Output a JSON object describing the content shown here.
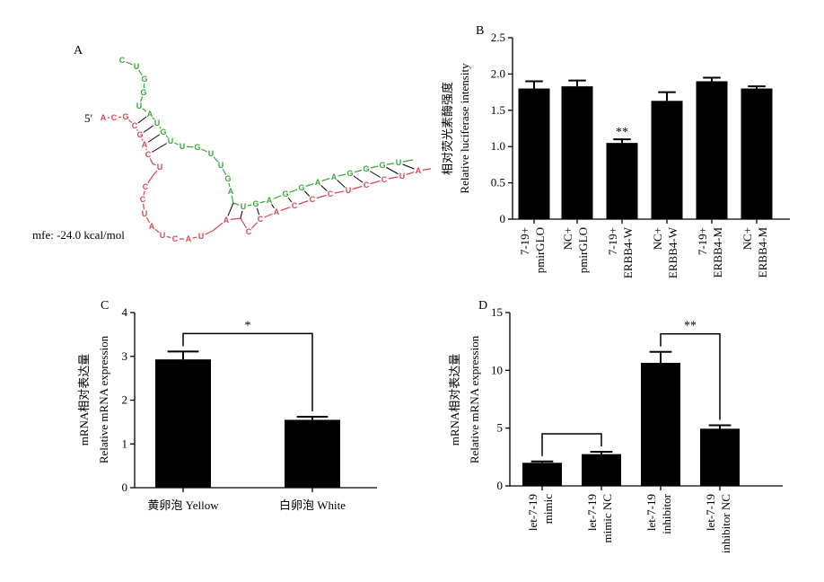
{
  "panels": {
    "A": {
      "label": "A",
      "five_prime": "5′",
      "mfe": "mfe: -24.0 kcal/mol",
      "colors": {
        "target": "#d64550",
        "mirna": "#3aa53a",
        "pair": "#000000"
      },
      "target_letters": [
        "A",
        "C",
        "G",
        "C",
        "G",
        "A",
        "C",
        "U",
        "C",
        "C",
        "U",
        "A",
        "U",
        "C",
        "A",
        "U",
        "A",
        "C",
        "C",
        "A",
        "C",
        "C",
        "C",
        "U",
        "C",
        "C",
        "U",
        "A"
      ],
      "mirna_letters": [
        "C",
        "U",
        "G",
        "G",
        "U",
        "A",
        "U",
        "G",
        "U",
        "U",
        "G",
        "U",
        "U",
        "G",
        "A",
        "U",
        "G",
        "A",
        "G",
        "G",
        "A",
        "A",
        "G",
        "G",
        "G",
        "U"
      ]
    },
    "B": {
      "label": "B"
    },
    "C": {
      "label": "C"
    },
    "D": {
      "label": "D"
    }
  },
  "chart_data": [
    {
      "panel": "B",
      "type": "bar",
      "categories": [
        [
          "7-19+",
          "pmirGLO"
        ],
        [
          "NC+",
          "pmirGLO"
        ],
        [
          "7-19+",
          "ERBB4-W"
        ],
        [
          "NC+",
          "ERBB4-W"
        ],
        [
          "7-19+",
          "ERBB4-M"
        ],
        [
          "NC+",
          "ERBB4-M"
        ]
      ],
      "values": [
        1.8,
        1.83,
        1.05,
        1.63,
        1.9,
        1.8
      ],
      "errors": [
        0.1,
        0.08,
        0.05,
        0.12,
        0.05,
        0.03
      ],
      "ylabel_cn": "相对荧光素酶强度",
      "ylabel_en": "Relative luciferase intensity",
      "ylim": [
        0,
        2.5
      ],
      "yticks": [
        "0",
        "0.5",
        "1.0",
        "1.5",
        "2.0",
        "2.5"
      ],
      "annotations": [
        {
          "category_index": 2,
          "text": "**"
        }
      ],
      "bar_color": "#000000"
    },
    {
      "panel": "C",
      "type": "bar",
      "categories": [
        [
          "黄卵泡 Yellow"
        ],
        [
          "白卵泡 White"
        ]
      ],
      "values": [
        2.93,
        1.55
      ],
      "errors": [
        0.18,
        0.07
      ],
      "ylabel_cn": "mRNA相对表达量",
      "ylabel_en": "Relative mRNA expression",
      "ylim": [
        0,
        4
      ],
      "yticks": [
        "0",
        "1",
        "2",
        "3",
        "4"
      ],
      "brackets": [
        {
          "from": 0,
          "to": 1,
          "text": "*"
        }
      ],
      "bar_color": "#000000"
    },
    {
      "panel": "D",
      "type": "bar",
      "categories": [
        [
          "let-7-19",
          "mimic"
        ],
        [
          "let-7-19",
          "mimic NC"
        ],
        [
          "let-7-19",
          "inhibitor"
        ],
        [
          "let-7-19",
          "inhibitor NC"
        ]
      ],
      "values": [
        2.0,
        2.75,
        10.65,
        4.95
      ],
      "errors": [
        0.12,
        0.2,
        0.95,
        0.3
      ],
      "ylabel_cn": "mRNA相对表达量",
      "ylabel_en": "Relative mRNA expression",
      "ylim": [
        0,
        15
      ],
      "yticks": [
        "0",
        "5",
        "10",
        "15"
      ],
      "brackets": [
        {
          "from": 0,
          "to": 1,
          "text": ""
        },
        {
          "from": 2,
          "to": 3,
          "text": "**"
        }
      ],
      "bar_color": "#000000"
    }
  ]
}
